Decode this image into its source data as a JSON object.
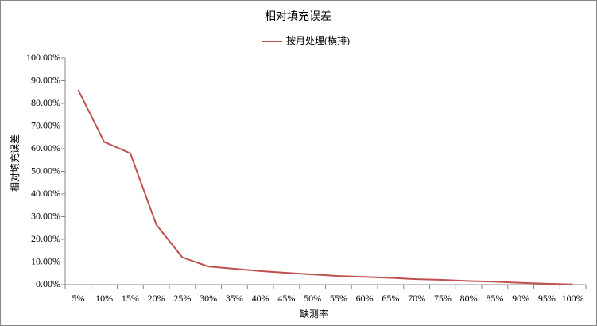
{
  "chart_data": {
    "type": "line",
    "title": "相对填充误差",
    "x_label": "缺测率",
    "y_label": "相对填充误差",
    "categories": [
      "5%",
      "10%",
      "15%",
      "20%",
      "25%",
      "30%",
      "35%",
      "40%",
      "45%",
      "50%",
      "55%",
      "60%",
      "65%",
      "70%",
      "75%",
      "80%",
      "85%",
      "90%",
      "95%",
      "100%"
    ],
    "series": [
      {
        "name": "按月处理(横排)",
        "color": "#c0504d",
        "values": [
          86,
          63,
          58,
          26.5,
          12,
          8,
          7,
          6,
          5.2,
          4.5,
          3.8,
          3.4,
          3,
          2.4,
          2.1,
          1.6,
          1.3,
          0.8,
          0.4,
          0.1
        ]
      }
    ],
    "ylim": [
      0,
      100
    ],
    "yticks": [
      {
        "value": 0,
        "label": "0.00%"
      },
      {
        "value": 10,
        "label": "10.00%"
      },
      {
        "value": 20,
        "label": "20.00%"
      },
      {
        "value": 30,
        "label": "30.00%"
      },
      {
        "value": 40,
        "label": "40.00%"
      },
      {
        "value": 50,
        "label": "50.00%"
      },
      {
        "value": 60,
        "label": "60.00%"
      },
      {
        "value": 70,
        "label": "70.00%"
      },
      {
        "value": 80,
        "label": "80.00%"
      },
      {
        "value": 90,
        "label": "90.00%"
      },
      {
        "value": 100,
        "label": "100.00%"
      }
    ],
    "grid": false,
    "legend": "top"
  }
}
